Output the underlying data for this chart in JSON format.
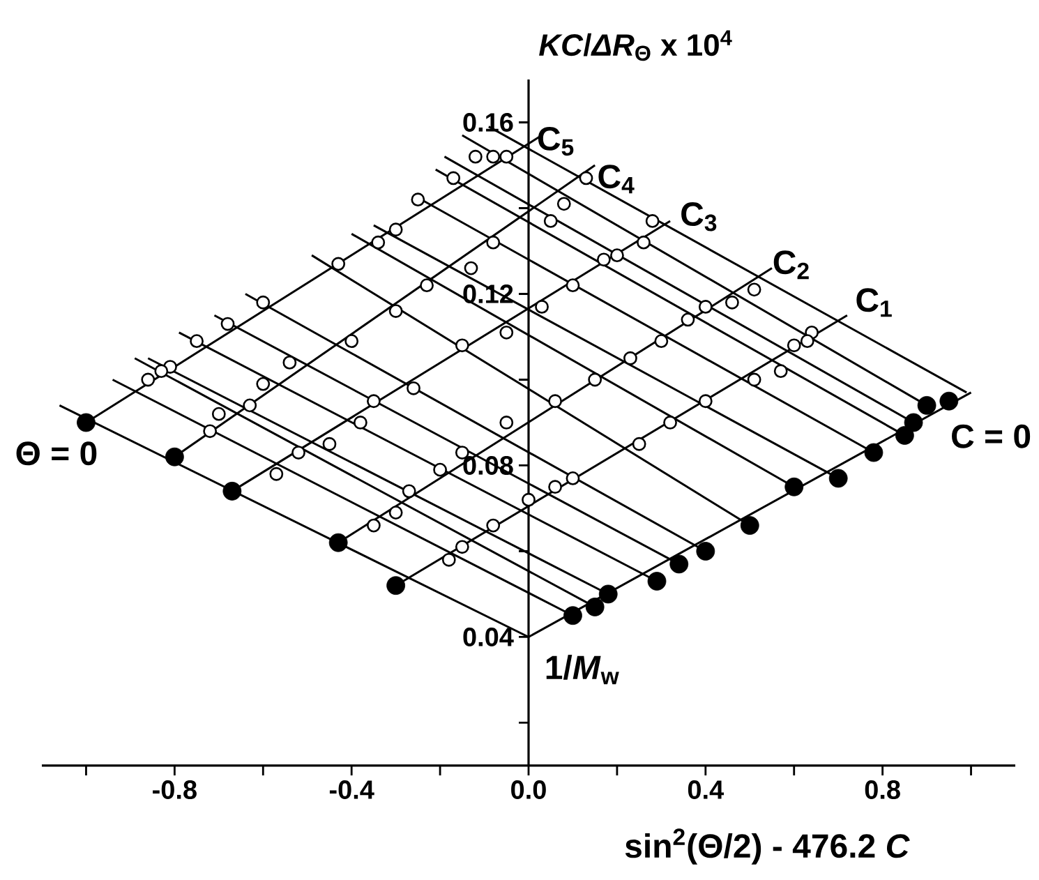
{
  "chart_data": {
    "type": "scatter",
    "xlabel": "sin$^{2}$(Θ/2) - 476.2 *C*",
    "ylabel": "*KC*/*ΔR*$_{Θ}$ x 10$^{4}$",
    "xlim": [
      -1.1,
      1.1
    ],
    "ylim": [
      0.01,
      0.17
    ],
    "xticks": [
      {
        "value": -1.0,
        "label": null
      },
      -0.8,
      {
        "value": -0.6,
        "label": null
      },
      -0.4,
      {
        "value": -0.2,
        "label": null
      },
      {
        "value": 0,
        "label": "0.0"
      },
      {
        "value": 0.2,
        "label": null
      },
      0.4,
      {
        "value": 0.6,
        "label": null
      },
      0.8,
      {
        "value": 1.0,
        "label": null
      }
    ],
    "yticks": [
      {
        "value": 0.02,
        "label": null
      },
      0.04,
      {
        "value": 0.06,
        "label": null
      },
      0.08,
      {
        "value": 0.1,
        "label": null
      },
      0.12,
      {
        "value": 0.14,
        "label": null
      },
      0.16
    ],
    "annotations": [
      "Θ = 0",
      "C = 0",
      "C$_{1}$",
      "C$_{2}$",
      "C$_{3}$",
      "C$_{4}$",
      "C$_{5}$",
      "1/*M*$_{w}$"
    ],
    "series": [
      {
        "type": "line",
        "marker": "none",
        "color": "#000000",
        "x": [
          -1.06,
          0
        ],
        "values": [
          0.094,
          0.04
        ]
      },
      {
        "type": "line",
        "marker": "none",
        "color": "#000000",
        "x": [
          0,
          1.0
        ],
        "values": [
          0.04,
          0.097
        ]
      },
      {
        "type": "line",
        "marker": "none",
        "color": "#000000",
        "x": [
          -0.3,
          0.72
        ],
        "values": [
          0.052,
          0.115
        ]
      },
      {
        "type": "line",
        "marker": "none",
        "color": "#000000",
        "x": [
          -0.43,
          0.55
        ],
        "values": [
          0.062,
          0.126
        ]
      },
      {
        "type": "line",
        "marker": "none",
        "color": "#000000",
        "x": [
          -0.67,
          0.32
        ],
        "values": [
          0.074,
          0.137
        ]
      },
      {
        "type": "line",
        "marker": "none",
        "color": "#000000",
        "x": [
          -0.8,
          0.15
        ],
        "values": [
          0.082,
          0.15
        ]
      },
      {
        "type": "line",
        "marker": "none",
        "color": "#000000",
        "x": [
          -1.0,
          0.03
        ],
        "values": [
          0.09,
          0.157
        ]
      },
      {
        "type": "line",
        "marker": "none",
        "color": "#000000",
        "x": [
          -0.94,
          0.1
        ],
        "values": [
          0.1,
          0.045
        ]
      },
      {
        "type": "line",
        "marker": "none",
        "color": "#000000",
        "x": [
          -0.89,
          0.15
        ],
        "values": [
          0.105,
          0.047
        ]
      },
      {
        "type": "line",
        "marker": "none",
        "color": "#000000",
        "x": [
          -0.86,
          0.18
        ],
        "values": [
          0.105,
          0.05
        ]
      },
      {
        "type": "line",
        "marker": "none",
        "color": "#000000",
        "x": [
          -0.79,
          0.29
        ],
        "values": [
          0.111,
          0.053
        ]
      },
      {
        "type": "line",
        "marker": "none",
        "color": "#000000",
        "x": [
          -0.71,
          0.34
        ],
        "values": [
          0.115,
          0.057
        ]
      },
      {
        "type": "line",
        "marker": "none",
        "color": "#000000",
        "x": [
          -0.64,
          0.4
        ],
        "values": [
          0.12,
          0.06
        ]
      },
      {
        "type": "line",
        "marker": "none",
        "color": "#000000",
        "x": [
          -0.49,
          0.5
        ],
        "values": [
          0.129,
          0.066
        ]
      },
      {
        "type": "line",
        "marker": "none",
        "color": "#000000",
        "x": [
          -0.4,
          0.6
        ],
        "values": [
          0.134,
          0.075
        ]
      },
      {
        "type": "line",
        "marker": "none",
        "color": "#000000",
        "x": [
          -0.35,
          0.7
        ],
        "values": [
          0.136,
          0.077
        ]
      },
      {
        "type": "line",
        "marker": "none",
        "color": "#000000",
        "x": [
          -0.26,
          0.78
        ],
        "values": [
          0.143,
          0.083
        ]
      },
      {
        "type": "line",
        "marker": "none",
        "color": "#000000",
        "x": [
          -0.21,
          0.85
        ],
        "values": [
          0.149,
          0.087
        ]
      },
      {
        "type": "line",
        "marker": "none",
        "color": "#000000",
        "x": [
          -0.19,
          0.87
        ],
        "values": [
          0.152,
          0.09
        ]
      },
      {
        "type": "line",
        "marker": "none",
        "color": "#000000",
        "x": [
          -0.15,
          0.9
        ],
        "values": [
          0.157,
          0.094
        ]
      },
      {
        "type": "line",
        "marker": "none",
        "color": "#000000",
        "x": [
          -0.09,
          0.99
        ],
        "values": [
          0.159,
          0.097
        ]
      },
      {
        "marker": "open circle",
        "color": "#000000",
        "x": [
          -0.05,
          -0.08,
          -0.12,
          -0.17,
          -0.25,
          -0.3,
          -0.34,
          -0.43,
          -0.08,
          -0.13,
          -0.23,
          -0.3,
          -0.4,
          -0.6,
          -0.68,
          -0.75,
          -0.81,
          -0.83,
          -0.86,
          -0.54,
          -0.6,
          -0.63,
          -0.7,
          -0.72,
          -0.05,
          -0.15,
          -0.26,
          -0.35,
          -0.38,
          -0.45,
          -0.52,
          -0.05,
          -0.15,
          -0.57,
          -0.35,
          -0.3,
          -0.27,
          -0.2,
          -0.18,
          -0.15,
          -0.08,
          0.0,
          0.13,
          0.08,
          0.05,
          0.28,
          0.26,
          0.2,
          0.17,
          0.1,
          0.03,
          0.51,
          0.46,
          0.4,
          0.36,
          0.3,
          0.23,
          0.15,
          0.06,
          0.64,
          0.63,
          0.6,
          0.57,
          0.51,
          0.4,
          0.32,
          0.25,
          0.1,
          0.06
        ],
        "values": [
          0.152,
          0.152,
          0.152,
          0.147,
          0.142,
          0.135,
          0.132,
          0.127,
          0.132,
          0.126,
          0.122,
          0.116,
          0.109,
          0.118,
          0.113,
          0.109,
          0.103,
          0.102,
          0.1,
          0.104,
          0.099,
          0.094,
          0.092,
          0.088,
          0.111,
          0.108,
          0.098,
          0.095,
          0.09,
          0.085,
          0.083,
          0.09,
          0.083,
          0.078,
          0.066,
          0.069,
          0.074,
          0.079,
          0.058,
          0.061,
          0.066,
          0.072,
          0.147,
          0.141,
          0.137,
          0.137,
          0.132,
          0.129,
          0.128,
          0.122,
          0.117,
          0.121,
          0.118,
          0.117,
          0.114,
          0.109,
          0.105,
          0.1,
          0.095,
          0.111,
          0.109,
          0.108,
          0.102,
          0.1,
          0.095,
          0.09,
          0.085,
          0.077,
          0.075
        ]
      },
      {
        "marker": "circle",
        "color": "#000000",
        "x": [
          -1.0,
          -0.8,
          -0.67,
          -0.43,
          -0.3
        ],
        "values": [
          0.09,
          0.082,
          0.074,
          0.062,
          0.052
        ]
      },
      {
        "marker": "circle",
        "color": "#000000",
        "x": [
          0.1,
          0.15,
          0.18,
          0.29,
          0.34,
          0.4,
          0.5,
          0.6,
          0.7,
          0.78,
          0.85,
          0.87,
          0.9,
          0.95
        ],
        "values": [
          0.045,
          0.047,
          0.05,
          0.053,
          0.057,
          0.06,
          0.066,
          0.075,
          0.077,
          0.083,
          0.087,
          0.09,
          0.094,
          0.095
        ]
      }
    ]
  }
}
